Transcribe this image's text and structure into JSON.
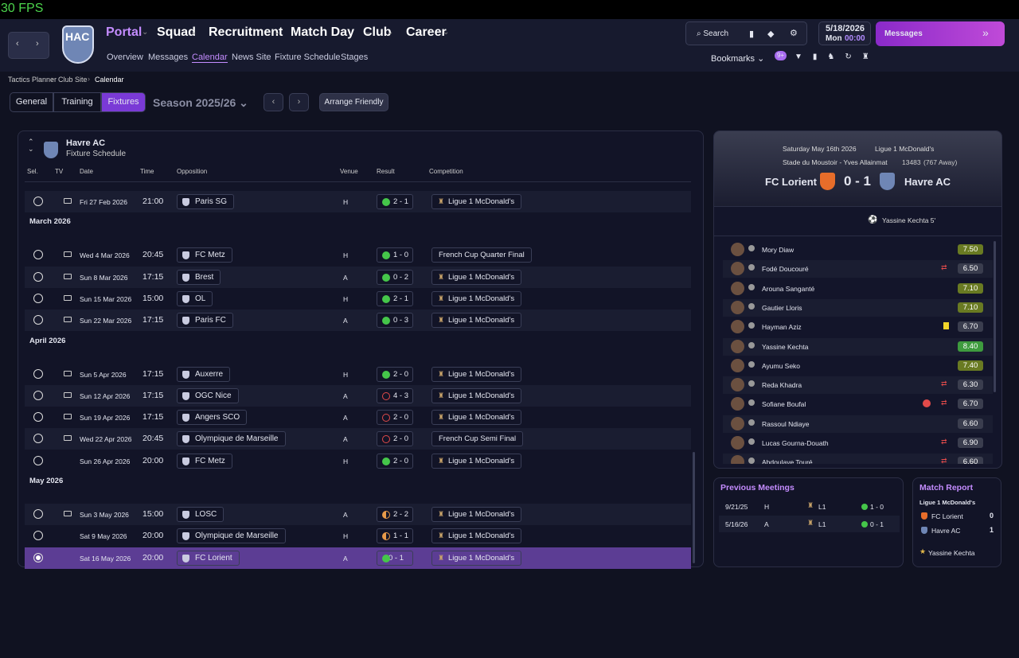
{
  "fps": "30 FPS",
  "nav": {
    "items": [
      "Portal",
      "Squad",
      "Recruitment",
      "Match Day",
      "Club",
      "Career"
    ],
    "sub": [
      "Overview",
      "Messages",
      "Calendar",
      "News Site",
      "Fixture Schedule",
      "Stages"
    ],
    "search": "Search",
    "date": "5/18/2026",
    "day": "Mon",
    "time": "00:00",
    "messages": "Messages",
    "bookmarks": "Bookmarks",
    "badge": "9+",
    "club_short": "HAC"
  },
  "breadcrumb": [
    "Tactics Planner",
    "Club Site",
    "Calendar"
  ],
  "tabs": [
    "General",
    "Training",
    "Fixtures"
  ],
  "season": "Season 2025/26",
  "arrange": "Arrange Friendly",
  "fixtures": {
    "team": "Havre AC",
    "subtitle": "Fixture Schedule",
    "columns": [
      "Sel.",
      "TV",
      "Date",
      "Time",
      "Opposition",
      "Venue",
      "Result",
      "Competition"
    ],
    "groups": [
      {
        "rows": [
          {
            "date": "Fri 27 Feb 2026",
            "time": "21:00",
            "opposition": "Paris SG",
            "venue": "H",
            "result": "2 - 1",
            "outcome": "win",
            "competition": "Ligue 1 McDonald's",
            "tv": true
          }
        ]
      },
      {
        "month": "March 2026",
        "rows": [
          {
            "date": "Wed 4 Mar 2026",
            "time": "20:45",
            "opposition": "FC Metz",
            "venue": "H",
            "result": "1 - 0",
            "outcome": "win",
            "competition": "French Cup Quarter Final",
            "tv": true
          },
          {
            "date": "Sun 8 Mar 2026",
            "time": "17:15",
            "opposition": "Brest",
            "venue": "A",
            "result": "0 - 2",
            "outcome": "win",
            "competition": "Ligue 1 McDonald's",
            "tv": true
          },
          {
            "date": "Sun 15 Mar 2026",
            "time": "15:00",
            "opposition": "OL",
            "venue": "H",
            "result": "2 - 1",
            "outcome": "win",
            "competition": "Ligue 1 McDonald's",
            "tv": true
          },
          {
            "date": "Sun 22 Mar 2026",
            "time": "17:15",
            "opposition": "Paris FC",
            "venue": "A",
            "result": "0 - 3",
            "outcome": "win",
            "competition": "Ligue 1 McDonald's",
            "tv": true
          }
        ]
      },
      {
        "month": "April 2026",
        "rows": [
          {
            "date": "Sun 5 Apr 2026",
            "time": "17:15",
            "opposition": "Auxerre",
            "venue": "H",
            "result": "2 - 0",
            "outcome": "win",
            "competition": "Ligue 1 McDonald's",
            "tv": true
          },
          {
            "date": "Sun 12 Apr 2026",
            "time": "17:15",
            "opposition": "OGC Nice",
            "venue": "A",
            "result": "4 - 3",
            "outcome": "loss",
            "competition": "Ligue 1 McDonald's",
            "tv": true
          },
          {
            "date": "Sun 19 Apr 2026",
            "time": "17:15",
            "opposition": "Angers SCO",
            "venue": "A",
            "result": "2 - 0",
            "outcome": "loss",
            "competition": "Ligue 1 McDonald's",
            "tv": true
          },
          {
            "date": "Wed 22 Apr 2026",
            "time": "20:45",
            "opposition": "Olympique de Marseille",
            "venue": "A",
            "result": "2 - 0",
            "outcome": "loss",
            "competition": "French Cup Semi Final",
            "tv": true
          },
          {
            "date": "Sun 26 Apr 2026",
            "time": "20:00",
            "opposition": "FC Metz",
            "venue": "H",
            "result": "2 - 0",
            "outcome": "win",
            "competition": "Ligue 1 McDonald's",
            "tv": false
          }
        ]
      },
      {
        "month": "May 2026",
        "rows": [
          {
            "date": "Sun 3 May 2026",
            "time": "15:00",
            "opposition": "LOSC",
            "venue": "A",
            "result": "2 - 2",
            "outcome": "draw",
            "competition": "Ligue 1 McDonald's",
            "tv": true
          },
          {
            "date": "Sat 9 May 2026",
            "time": "20:00",
            "opposition": "Olympique de Marseille",
            "venue": "H",
            "result": "1 - 1",
            "outcome": "draw",
            "competition": "Ligue 1 McDonald's",
            "tv": false
          },
          {
            "date": "Sat 16 May 2026",
            "time": "20:00",
            "opposition": "FC Lorient",
            "venue": "A",
            "result": "0 - 1",
            "outcome": "win",
            "competition": "Ligue 1 McDonald's",
            "tv": false,
            "selected": true
          }
        ]
      }
    ]
  },
  "match": {
    "date": "Saturday May 16th 2026",
    "competition": "Ligue 1 McDonald's",
    "stadium": "Stade du Moustoir - Yves Allainmat",
    "attendance": "13483",
    "away_fans": "(767 Away)",
    "home": "FC Lorient",
    "score": "0 - 1",
    "away": "Havre AC",
    "scorer": "Yassine Kechta 5'",
    "players": [
      {
        "name": "Mory Diaw",
        "rating": "7.50"
      },
      {
        "name": "Fodé Doucouré",
        "rating": "6.50",
        "sub": true
      },
      {
        "name": "Arouna Sanganté",
        "rating": "7.10"
      },
      {
        "name": "Gautier Lloris",
        "rating": "7.10"
      },
      {
        "name": "Hayman Aziz",
        "rating": "6.70",
        "yellow": true
      },
      {
        "name": "Yassine Kechta",
        "rating": "8.40"
      },
      {
        "name": "Ayumu Seko",
        "rating": "7.40"
      },
      {
        "name": "Reda Khadra",
        "rating": "6.30",
        "sub": true
      },
      {
        "name": "Sofiane Boufal",
        "rating": "6.70",
        "sub": true,
        "injury": true
      },
      {
        "name": "Rassoul Ndiaye",
        "rating": "6.60"
      },
      {
        "name": "Lucas Gourna-Douath",
        "rating": "6.90",
        "sub": true
      },
      {
        "name": "Abdoulaye Touré",
        "rating": "6.60",
        "sub": true
      }
    ]
  },
  "previous": {
    "title": "Previous Meetings",
    "rows": [
      [
        "9/21/25",
        "H",
        "L1",
        "1 - 0"
      ],
      [
        "5/16/26",
        "A",
        "L1",
        "0 - 1"
      ]
    ]
  },
  "report": {
    "title": "Match Report",
    "competition": "Ligue 1 McDonald's",
    "teams": [
      [
        "FC Lorient",
        "0"
      ],
      [
        "Havre AC",
        "1"
      ]
    ],
    "motm": "Yassine Kechta"
  }
}
